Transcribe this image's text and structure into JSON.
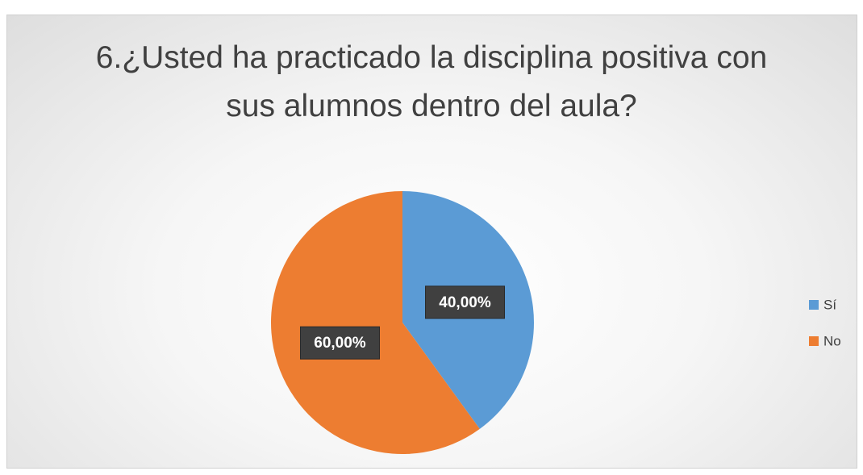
{
  "chart_data": {
    "type": "pie",
    "title": "6.¿Usted ha practicado la disciplina positiva con sus alumnos dentro del aula?",
    "categories": [
      "Sí",
      "No"
    ],
    "values": [
      40,
      60
    ],
    "value_labels": [
      "40,00%",
      "60,00%"
    ],
    "colors": [
      "#5b9bd5",
      "#ed7d31"
    ],
    "legend": "right"
  }
}
